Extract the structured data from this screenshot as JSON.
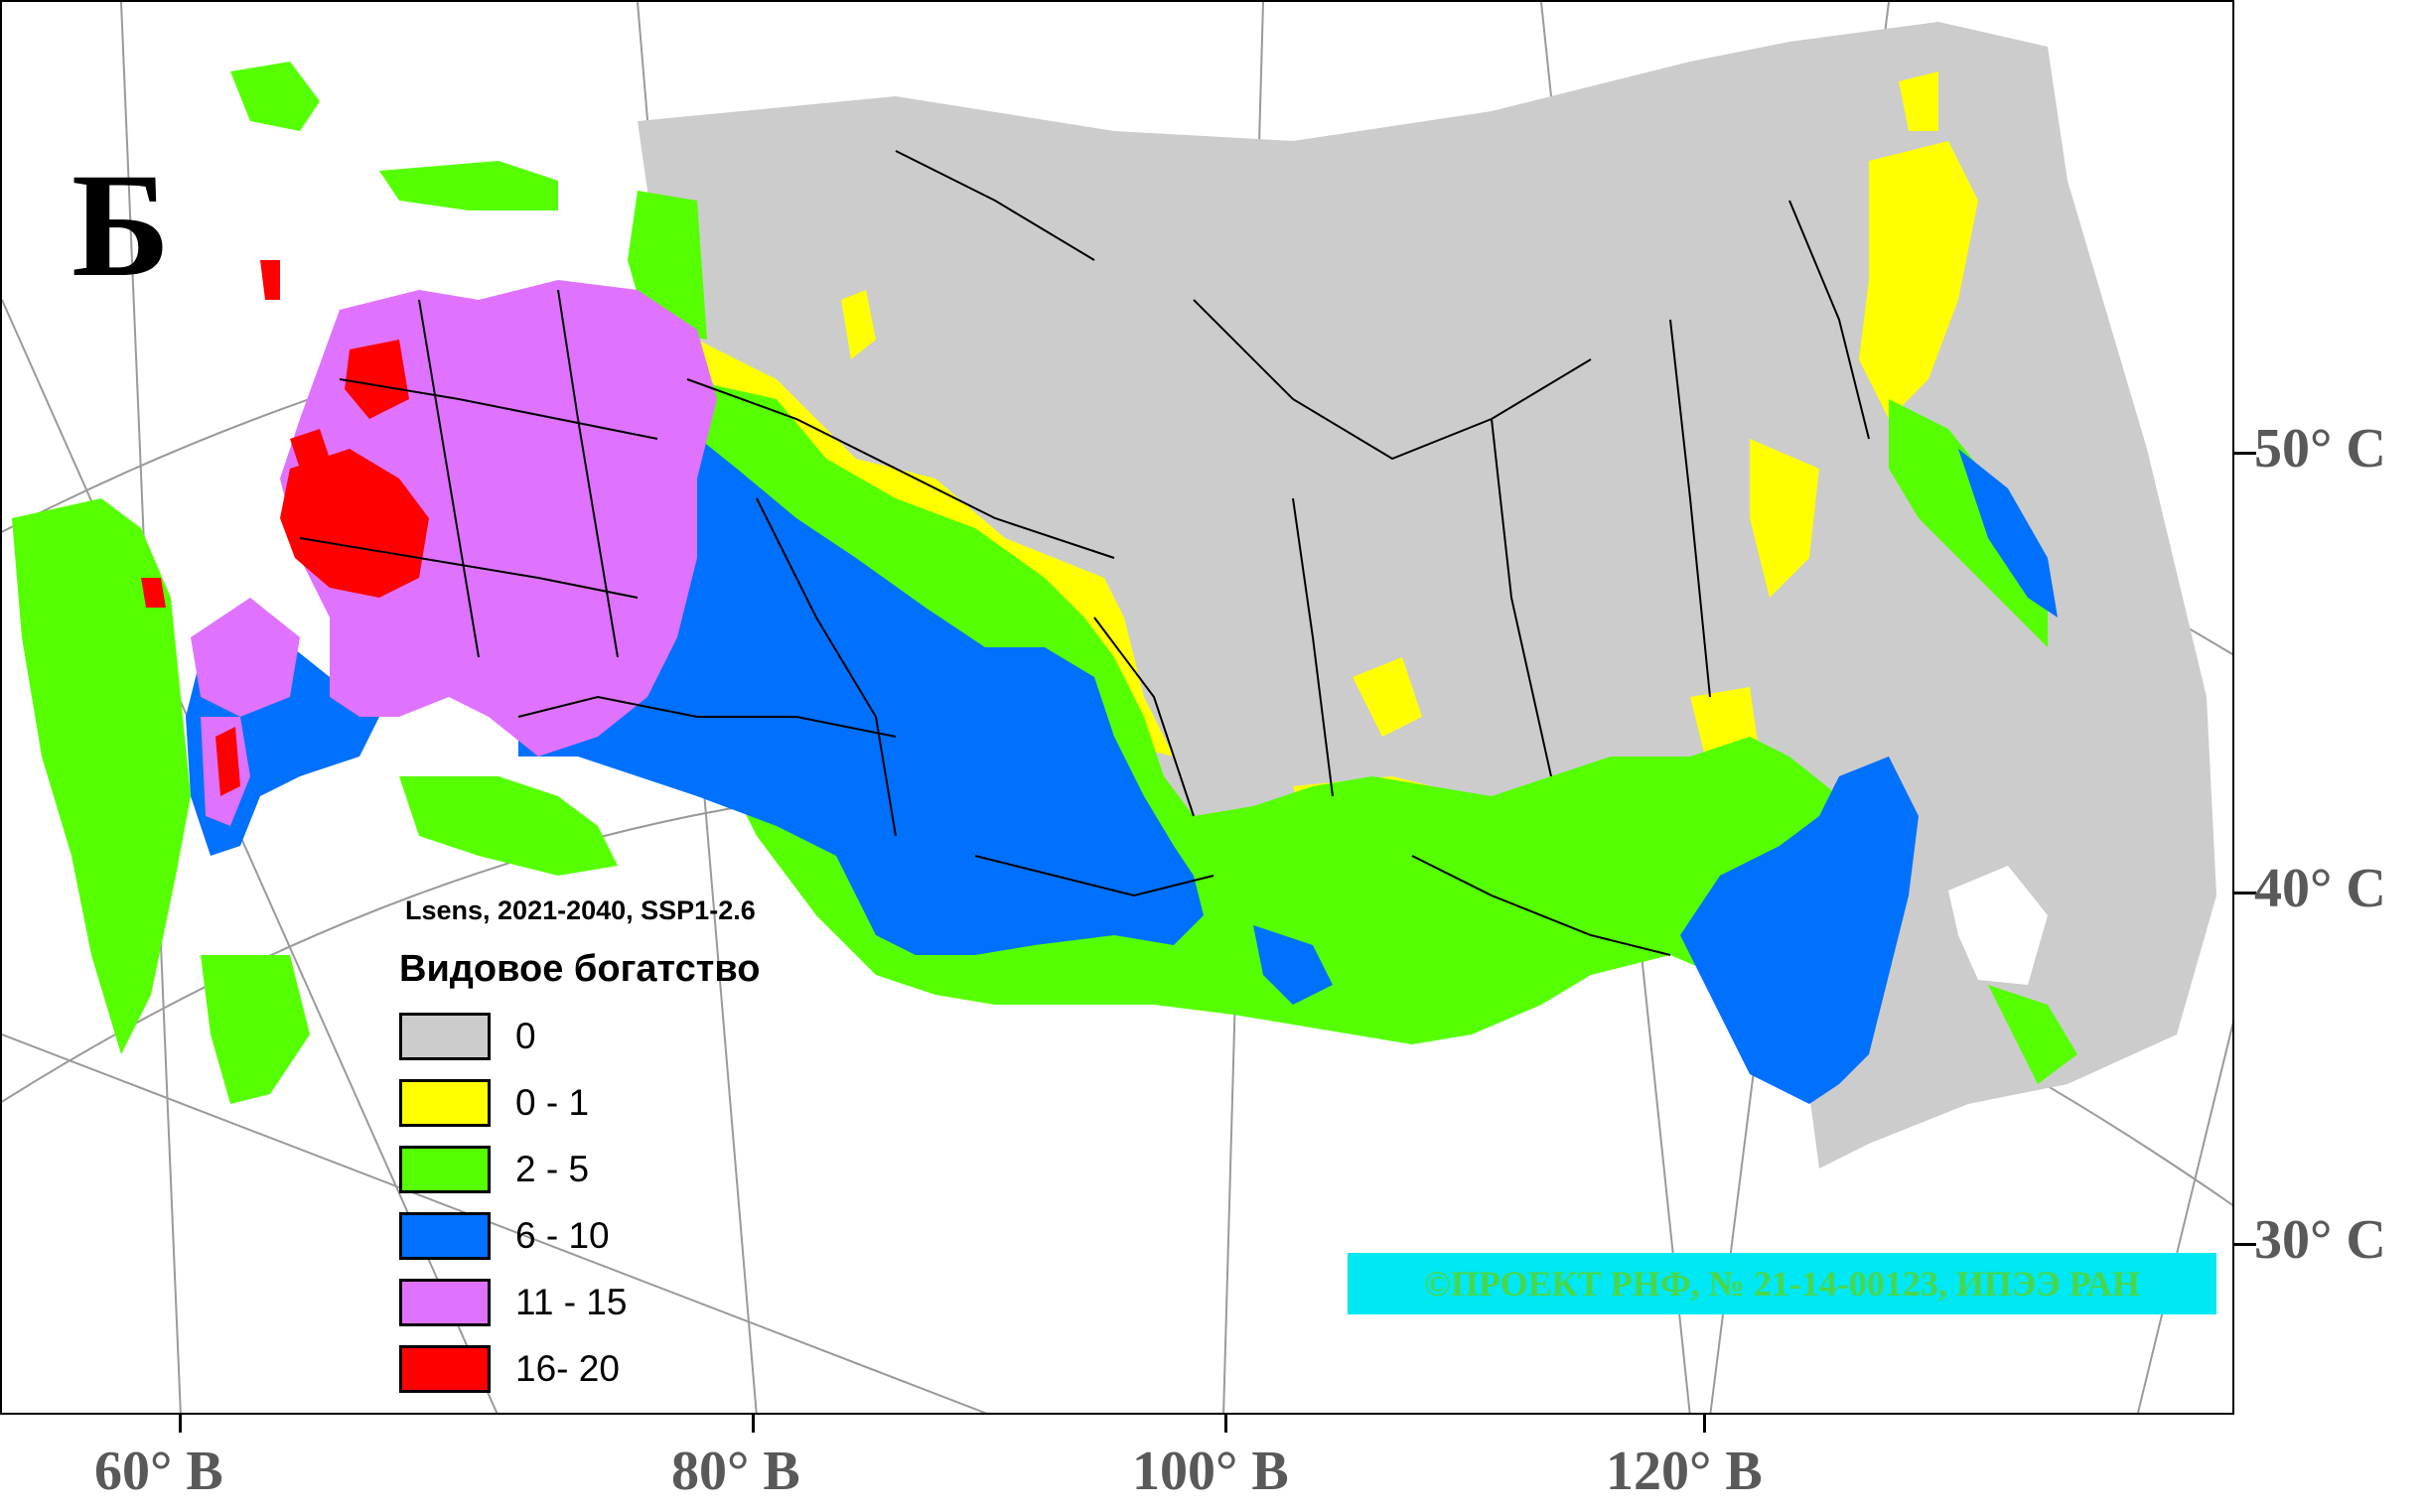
{
  "panel_letter": "Б",
  "legend": {
    "run_label": "Lsens, 2021-2040, SSP1-2.6",
    "title": "Видовое богатство",
    "items": [
      {
        "label": "0",
        "color": "#cccccc"
      },
      {
        "label": "0 - 1",
        "color": "#ffff00"
      },
      {
        "label": "2 - 5",
        "color": "#55ff00"
      },
      {
        "label": "6 - 10",
        "color": "#0070ff"
      },
      {
        "label": "11 - 15",
        "color": "#df73ff"
      },
      {
        "label": "16- 20",
        "color": "#ff0000"
      }
    ]
  },
  "copyright": "©ПРОЕКТ РНФ, № 21-14-00123, ИПЭЭ РАН",
  "latitude_labels": [
    "50° С",
    "40° С",
    "30° С"
  ],
  "longitude_labels": [
    "60° В",
    "80° В",
    "100° В",
    "120° В"
  ]
}
